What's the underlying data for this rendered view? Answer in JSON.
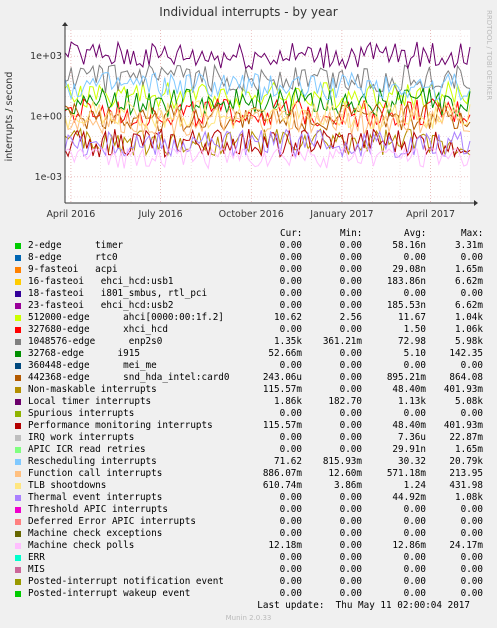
{
  "header": {
    "title": "Individual interrupts - by year",
    "side_label": "RRDTOOL / TOBI OETIKER"
  },
  "columns": {
    "cur": "Cur:",
    "min": "Min:",
    "avg": "Avg:",
    "max": "Max:"
  },
  "chart_data": {
    "type": "line",
    "title": "Individual interrupts - by year",
    "ylabel": "interrupts / second",
    "yscale": "log",
    "ylim": [
      5e-05,
      20000
    ],
    "ytick_labels": [
      "1e+03",
      "1e+00",
      "1e-03"
    ],
    "ytick_values": [
      1000,
      1,
      0.001
    ],
    "xlim": [
      "2016-03-26",
      "2017-05-11"
    ],
    "xtick_labels": [
      "April 2016",
      "July 2016",
      "October 2016",
      "January 2017",
      "April 2017"
    ],
    "xtick_values": [
      "2016-04-01",
      "2016-07-01",
      "2016-10-01",
      "2017-01-01",
      "2017-04-01"
    ],
    "grid": true,
    "legend": "bottom",
    "series": [
      {
        "name": "2-edge      timer",
        "color": "#00cc00",
        "cur": "0.00",
        "min": "0.00",
        "avg": "58.16n",
        "max": "3.31m"
      },
      {
        "name": "8-edge      rtc0",
        "color": "#0066b3",
        "cur": "0.00",
        "min": "0.00",
        "avg": "0.00",
        "max": "0.00"
      },
      {
        "name": "9-fasteoi   acpi",
        "color": "#ff8000",
        "cur": "0.00",
        "min": "0.00",
        "avg": "29.08n",
        "max": "1.65m"
      },
      {
        "name": "16-fasteoi   ehci_hcd:usb1",
        "color": "#ffcc00",
        "cur": "0.00",
        "min": "0.00",
        "avg": "183.86n",
        "max": "6.62m"
      },
      {
        "name": "18-fasteoi   i801_smbus, rtl_pci",
        "color": "#330099",
        "cur": "0.00",
        "min": "0.00",
        "avg": "0.00",
        "max": "0.00"
      },
      {
        "name": "23-fasteoi   ehci_hcd:usb2",
        "color": "#990099",
        "cur": "0.00",
        "min": "0.00",
        "avg": "185.53n",
        "max": "6.62m"
      },
      {
        "name": "512000-edge      ahci[0000:00:1f.2]",
        "color": "#ccff00",
        "cur": "10.62",
        "min": "2.56",
        "avg": "11.67",
        "max": "1.04k"
      },
      {
        "name": "327680-edge      xhci_hcd",
        "color": "#ff0000",
        "cur": "0.00",
        "min": "0.00",
        "avg": "1.50",
        "max": "1.06k"
      },
      {
        "name": "1048576-edge      enp2s0",
        "color": "#808080",
        "cur": "1.35k",
        "min": "361.21m",
        "avg": "72.98",
        "max": "5.98k"
      },
      {
        "name": "32768-edge      i915",
        "color": "#008f00",
        "cur": "52.66m",
        "min": "0.00",
        "avg": "5.10",
        "max": "142.35"
      },
      {
        "name": "360448-edge      mei_me",
        "color": "#00487d",
        "cur": "0.00",
        "min": "0.00",
        "avg": "0.00",
        "max": "0.00"
      },
      {
        "name": "442368-edge      snd_hda_intel:card0",
        "color": "#b35a00",
        "cur": "243.06u",
        "min": "0.00",
        "avg": "895.21m",
        "max": "864.08"
      },
      {
        "name": "Non-maskable interrupts",
        "color": "#b38f00",
        "cur": "115.57m",
        "min": "0.00",
        "avg": "48.40m",
        "max": "401.93m"
      },
      {
        "name": "Local timer interrupts",
        "color": "#6b006b",
        "cur": "1.86k",
        "min": "182.70",
        "avg": "1.13k",
        "max": "5.08k"
      },
      {
        "name": "Spurious interrupts",
        "color": "#8fb300",
        "cur": "0.00",
        "min": "0.00",
        "avg": "0.00",
        "max": "0.00"
      },
      {
        "name": "Performance monitoring interrupts",
        "color": "#b30000",
        "cur": "115.57m",
        "min": "0.00",
        "avg": "48.40m",
        "max": "401.93m"
      },
      {
        "name": "IRQ work interrupts",
        "color": "#bebebe",
        "cur": "0.00",
        "min": "0.00",
        "avg": "7.36u",
        "max": "22.87m"
      },
      {
        "name": "APIC ICR read retries",
        "color": "#80ff80",
        "cur": "0.00",
        "min": "0.00",
        "avg": "29.91n",
        "max": "1.65m"
      },
      {
        "name": "Rescheduling interrupts",
        "color": "#80c9ff",
        "cur": "71.62",
        "min": "815.93m",
        "avg": "30.32",
        "max": "20.79k"
      },
      {
        "name": "Function call interrupts",
        "color": "#ffc080",
        "cur": "886.07m",
        "min": "12.60m",
        "avg": "571.18m",
        "max": "213.95"
      },
      {
        "name": "TLB shootdowns",
        "color": "#ffe680",
        "cur": "610.74m",
        "min": "3.86m",
        "avg": "1.24",
        "max": "431.98"
      },
      {
        "name": "Thermal event interrupts",
        "color": "#aa80ff",
        "cur": "0.00",
        "min": "0.00",
        "avg": "44.92m",
        "max": "1.08k"
      },
      {
        "name": "Threshold APIC interrupts",
        "color": "#ee00cc",
        "cur": "0.00",
        "min": "0.00",
        "avg": "0.00",
        "max": "0.00"
      },
      {
        "name": "Deferred Error APIC interrupts",
        "color": "#ff8080",
        "cur": "0.00",
        "min": "0.00",
        "avg": "0.00",
        "max": "0.00"
      },
      {
        "name": "Machine check exceptions",
        "color": "#666600",
        "cur": "0.00",
        "min": "0.00",
        "avg": "0.00",
        "max": "0.00"
      },
      {
        "name": "Machine check polls",
        "color": "#ffbfff",
        "cur": "12.18m",
        "min": "0.00",
        "avg": "12.86m",
        "max": "24.17m"
      },
      {
        "name": "ERR",
        "color": "#00ffcc",
        "cur": "0.00",
        "min": "0.00",
        "avg": "0.00",
        "max": "0.00"
      },
      {
        "name": "MIS",
        "color": "#cc6699",
        "cur": "0.00",
        "min": "0.00",
        "avg": "0.00",
        "max": "0.00"
      },
      {
        "name": "Posted-interrupt notification event",
        "color": "#999900",
        "cur": "0.00",
        "min": "0.00",
        "avg": "0.00",
        "max": "0.00"
      },
      {
        "name": "Posted-interrupt wakeup event",
        "color": "#00cc00",
        "cur": "0.00",
        "min": "0.00",
        "avg": "0.00",
        "max": "0.00"
      }
    ]
  },
  "footer": {
    "last_update": "Last update:  Thu May 11 02:00:04 2017",
    "munin": "Munin 2.0.33"
  }
}
